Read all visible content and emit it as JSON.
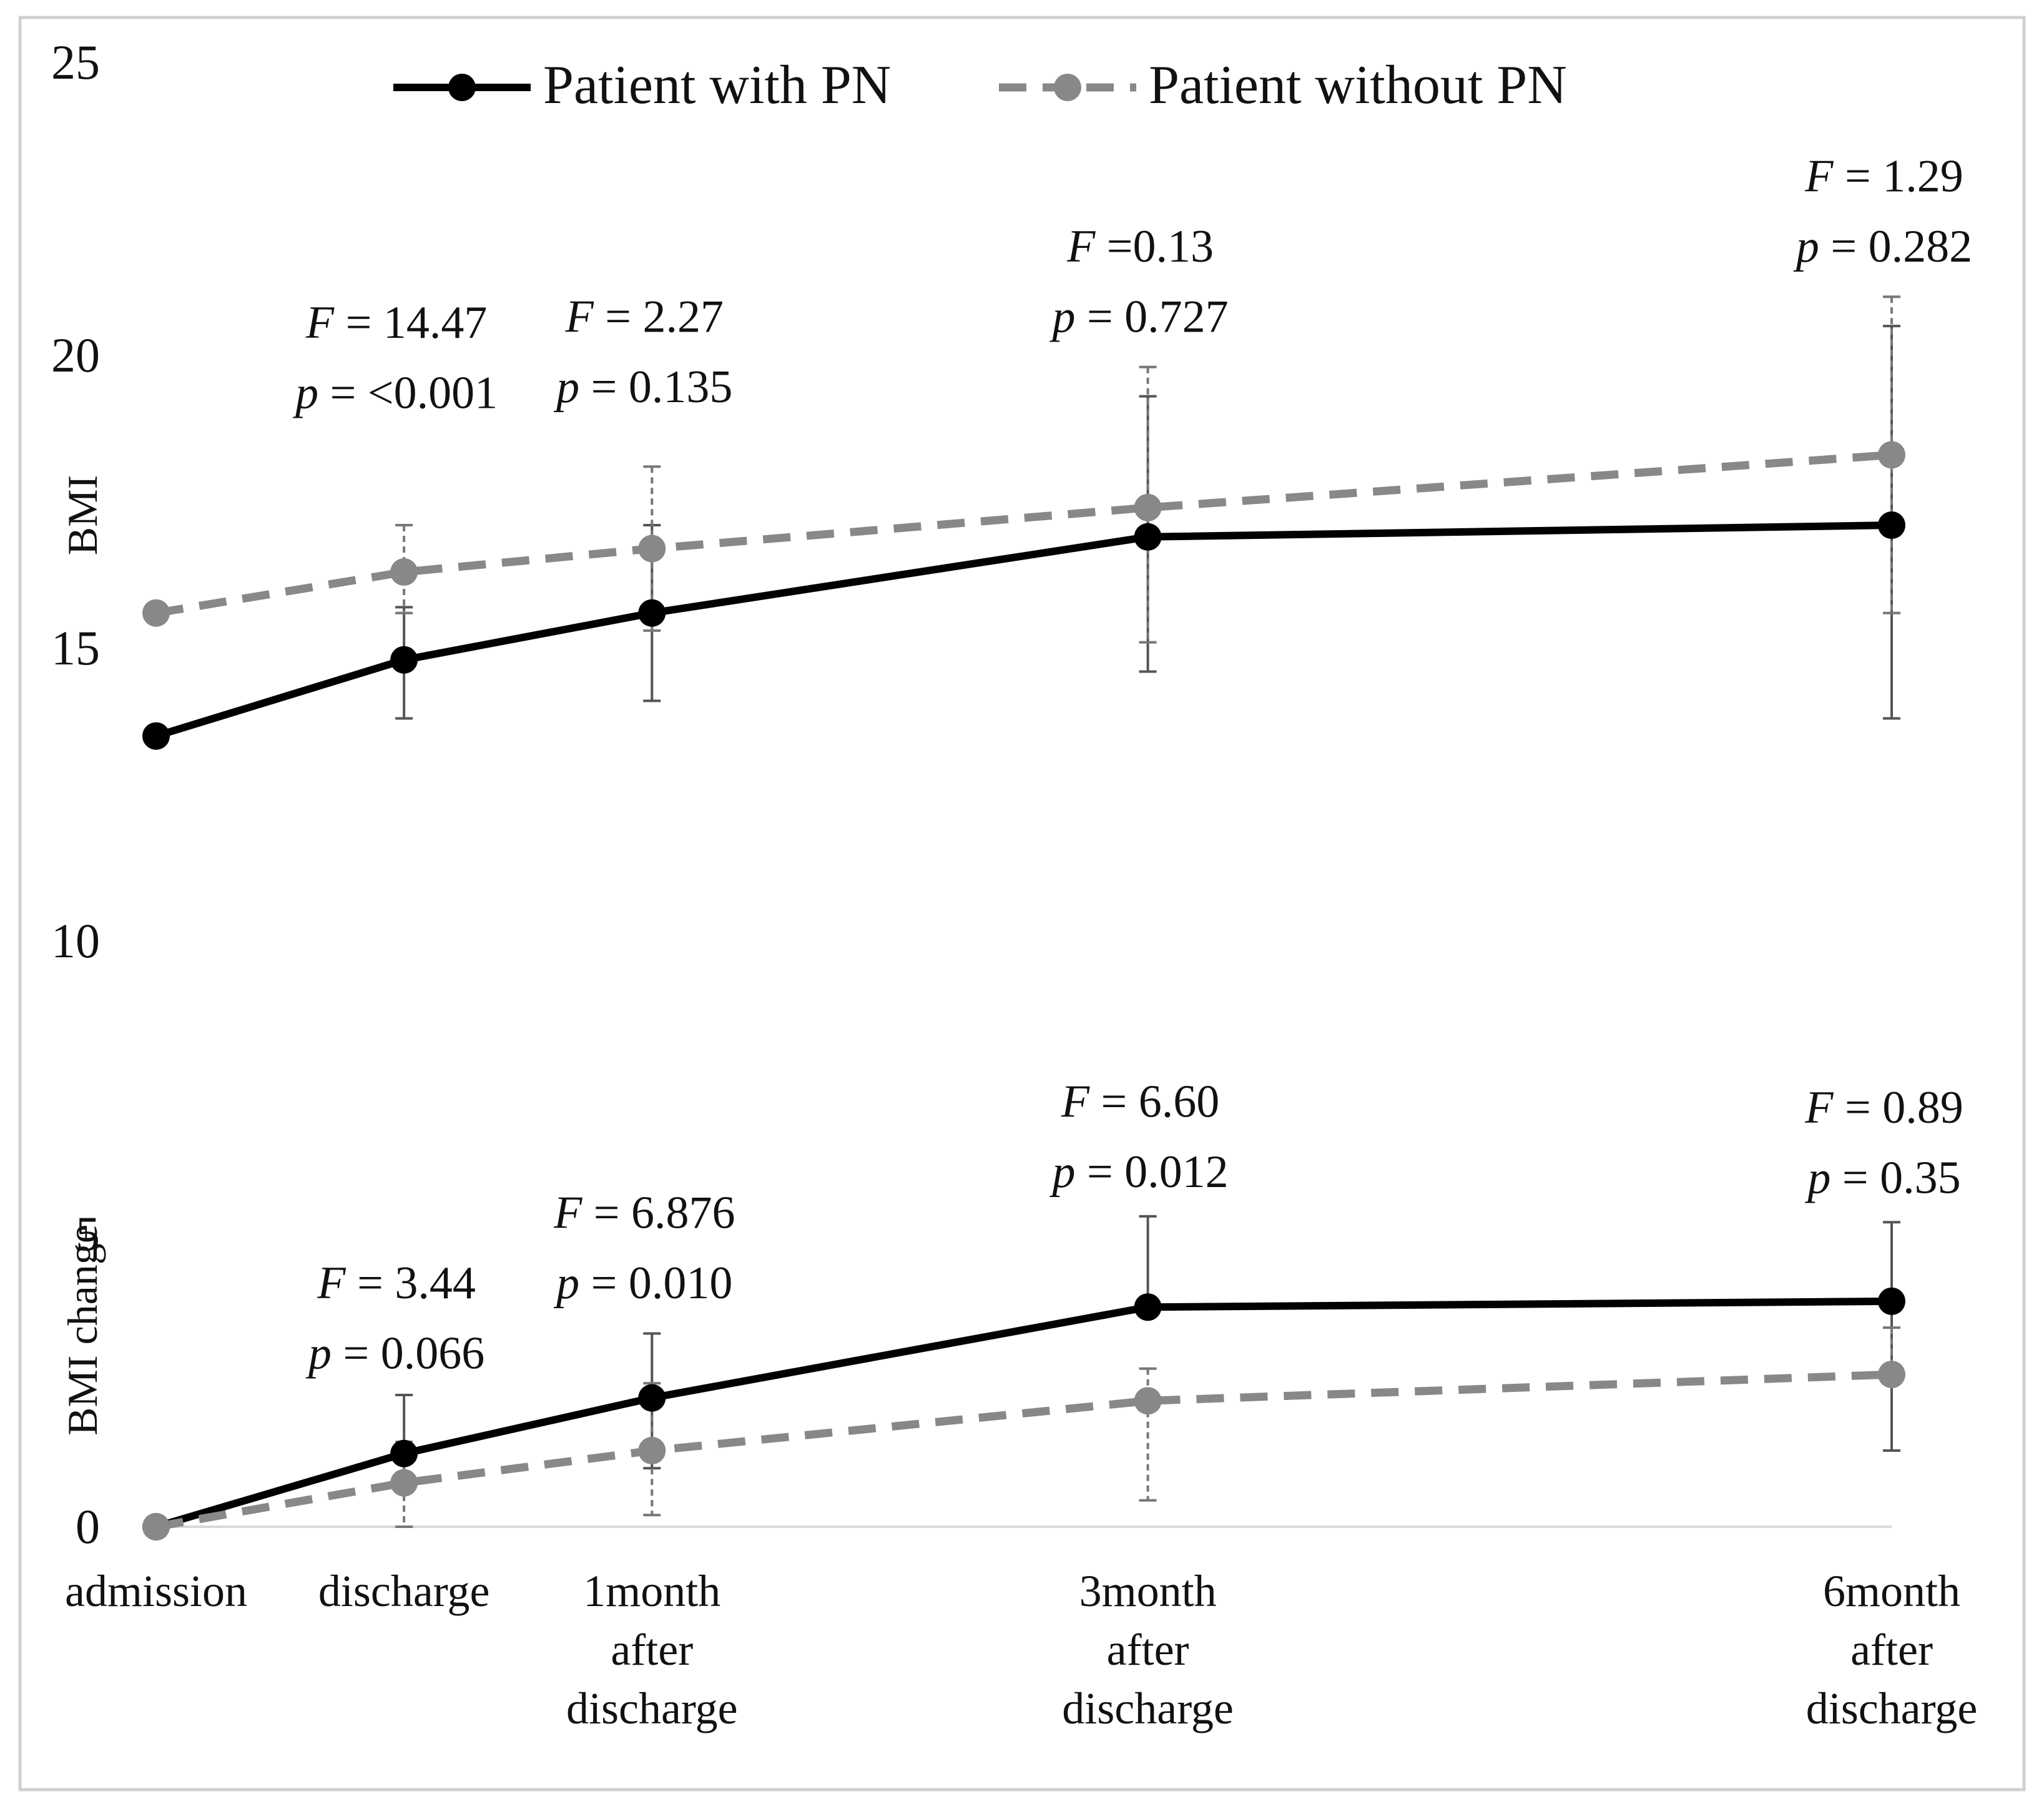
{
  "chart_data": {
    "type": "line",
    "x_positions": [
      0,
      1,
      2,
      4,
      7
    ],
    "categories": [
      [
        "admission"
      ],
      [
        "discharge"
      ],
      [
        "1month",
        "after",
        "discharge"
      ],
      [
        "3month",
        "after",
        "discharge"
      ],
      [
        "6month",
        "after",
        "discharge"
      ]
    ],
    "ylim": [
      0,
      25
    ],
    "y_ticks": [
      "0",
      "5",
      "10",
      "15",
      "20",
      "25"
    ],
    "y_tick_values": [
      0,
      5,
      10,
      15,
      20,
      25
    ],
    "ylabel_bmi": "BMI",
    "ylabel_change": "BMI change",
    "legend": {
      "position": "top",
      "with_pn": "Patient with PN",
      "without_pn": "Patient without PN"
    },
    "panels": {
      "bmi": {
        "series": [
          {
            "name": "Patient with PN",
            "style": "solid",
            "color": "#000000",
            "values": [
              13.5,
              14.8,
              15.6,
              16.9,
              17.1
            ],
            "err_lower": [
              null,
              13.8,
              14.1,
              14.6,
              13.8
            ],
            "err_upper": [
              null,
              15.7,
              17.1,
              19.3,
              20.5
            ]
          },
          {
            "name": "Patient without PN",
            "style": "dashed",
            "color": "#888888",
            "values": [
              15.6,
              16.3,
              16.7,
              17.4,
              18.3
            ],
            "err_lower": [
              null,
              15.6,
              15.3,
              15.1,
              15.6
            ],
            "err_upper": [
              null,
              17.1,
              18.1,
              19.8,
              21.0
            ]
          }
        ],
        "annotations": [
          {
            "x_index": 1,
            "f_label": "F",
            "f_text": " = 14.47",
            "p_label": "p",
            "p_text": " = <0.001",
            "f_y": 20.3,
            "p_y": 19.1
          },
          {
            "x_index": 2,
            "f_label": "F",
            "f_text": " = 2.27",
            "p_label": "p",
            "p_text": " = 0.135",
            "f_y": 20.4,
            "p_y": 19.2
          },
          {
            "x_index": 4,
            "f_label": "F",
            "f_text": " =0.13",
            "p_label": "p",
            "p_text": " = 0.727",
            "f_y": 21.6,
            "p_y": 20.4
          },
          {
            "x_index": 7,
            "f_label": "F",
            "f_text": " = 1.29",
            "p_label": "p",
            "p_text": " = 0.282",
            "f_y": 22.8,
            "p_y": 21.6
          }
        ]
      },
      "change": {
        "series": [
          {
            "name": "Patient with PN",
            "style": "solid",
            "color": "#000000",
            "values": [
              0,
              1.25,
              2.2,
              3.75,
              3.85
            ],
            "err_lower": [
              null,
              null,
              1.0,
              null,
              1.3
            ],
            "err_upper": [
              null,
              2.25,
              3.3,
              5.3,
              5.2
            ]
          },
          {
            "name": "Patient without PN",
            "style": "dashed",
            "color": "#888888",
            "values": [
              0,
              0.75,
              1.3,
              2.15,
              2.6
            ],
            "err_lower": [
              null,
              0.0,
              0.2,
              0.45,
              null
            ],
            "err_upper": [
              null,
              1.45,
              2.45,
              2.7,
              3.4
            ]
          }
        ],
        "annotations": [
          {
            "x_index": 1,
            "f_label": "F",
            "f_text": " = 3.44",
            "p_label": "p",
            "p_text": " = 0.066",
            "f_y": 3.9,
            "p_y": 2.7
          },
          {
            "x_index": 2,
            "f_label": "F",
            "f_text": " = 6.876",
            "p_label": "p",
            "p_text": " = 0.010",
            "f_y": 5.1,
            "p_y": 3.9
          },
          {
            "x_index": 4,
            "f_label": "F",
            "f_text": " = 6.60",
            "p_label": "p",
            "p_text": " = 0.012",
            "f_y": 7.0,
            "p_y": 5.8
          },
          {
            "x_index": 7,
            "f_label": "F",
            "f_text": " = 0.89",
            "p_label": "p",
            "p_text": " = 0.35",
            "f_y": 6.9,
            "p_y": 5.7
          }
        ]
      }
    },
    "grid": false
  }
}
